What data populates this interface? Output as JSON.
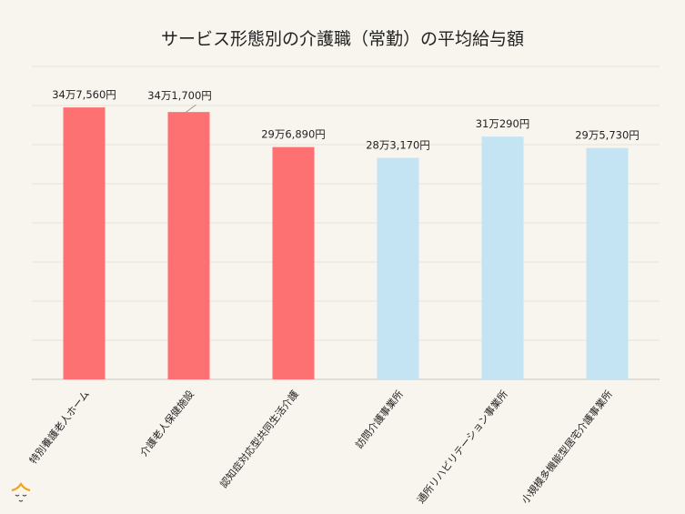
{
  "chart_data": {
    "type": "bar",
    "title": "サービス形態別の介護職（常勤）の平均給与額",
    "xlabel": "",
    "ylabel": "",
    "ylim": [
      0,
      400000
    ],
    "grid_step": 50000,
    "grid": true,
    "categories": [
      "特別養護老人ホーム",
      "介護老人保健施設",
      "認知症対応型共同生活介護",
      "訪問介護事業所",
      "通所リハビリテーション事業所",
      "小規模多機能型居宅介護事業所"
    ],
    "values": [
      347560,
      341700,
      296890,
      283170,
      310290,
      295730
    ],
    "data_labels": [
      "34万7,560円",
      "34万1,700円",
      "29万6,890円",
      "28万3,170円",
      "31万290円",
      "29万5,730円"
    ],
    "colors": [
      "#fe7173",
      "#fe7173",
      "#fe7173",
      "#c4e4f4",
      "#c4e4f4",
      "#c4e4f4"
    ]
  }
}
